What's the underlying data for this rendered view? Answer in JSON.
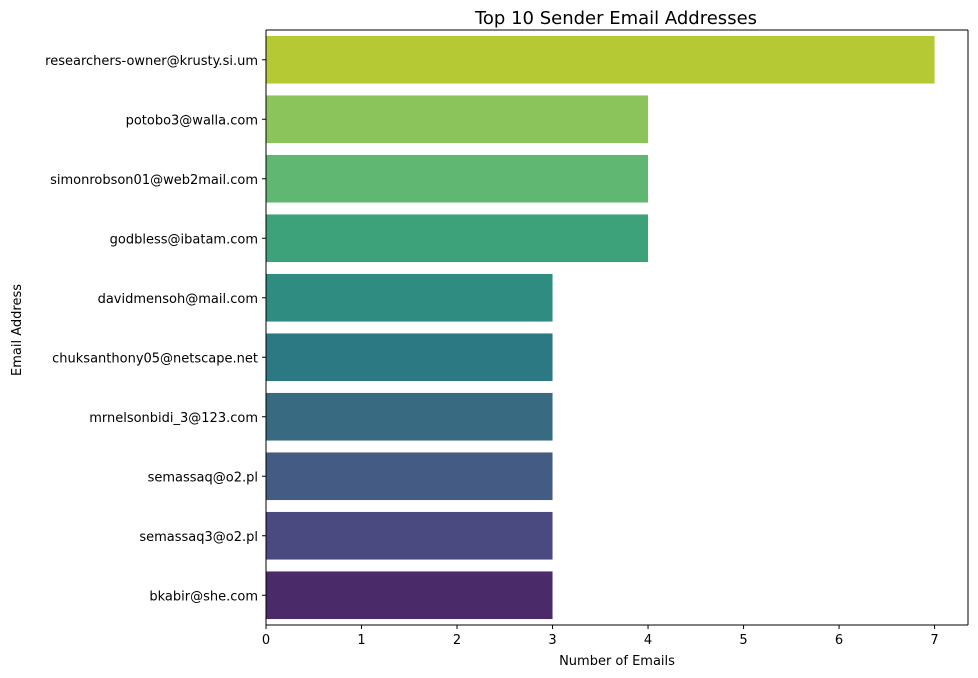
{
  "chart_data": {
    "type": "bar",
    "orientation": "horizontal",
    "title": "Top 10 Sender Email Addresses",
    "xlabel": "Number of Emails",
    "ylabel": "Email Address",
    "xlim": [
      0,
      7.35
    ],
    "xticks": [
      0,
      1,
      2,
      3,
      4,
      5,
      6,
      7
    ],
    "grid": false,
    "categories": [
      "researchers-owner@krusty.si.um",
      "potobo3@walla.com",
      "simonrobson01@web2mail.com",
      "godbless@ibatam.com",
      "davidmensoh@mail.com",
      "chuksanthony05@netscape.net",
      "mrnelsonbidi_3@123.com",
      "semassaq@o2.pl",
      "semassaq3@o2.pl",
      "bkabir@she.com"
    ],
    "values": [
      7,
      4,
      4,
      4,
      3,
      3,
      3,
      3,
      3,
      3
    ],
    "colors": [
      "#b5c934",
      "#8bc45a",
      "#60b771",
      "#3da27a",
      "#2e8c80",
      "#2d7983",
      "#386b82",
      "#445c84",
      "#4a4980",
      "#4a2a69"
    ]
  }
}
